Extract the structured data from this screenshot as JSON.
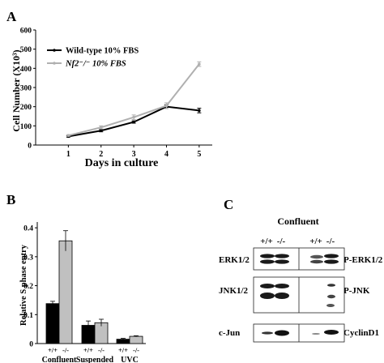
{
  "panel_labels": {
    "a": "A",
    "b": "B",
    "c": "C"
  },
  "chart_data": [
    {
      "type": "line",
      "ylabel": "Cell Number (X10³)",
      "xlabel": "Days in culture",
      "x": [
        1,
        2,
        3,
        4,
        5
      ],
      "xticks": [
        "1",
        "2",
        "3",
        "4",
        "5"
      ],
      "yticks": [
        "0",
        "100",
        "200",
        "300",
        "400",
        "500",
        "600"
      ],
      "xlim": [
        0,
        5.4
      ],
      "ylim": [
        0,
        600
      ],
      "legend_position": "top-left",
      "series": [
        {
          "name": "Wild-type 10% FBS",
          "color": "#000000",
          "values": [
            45,
            75,
            120,
            200,
            180
          ],
          "errors": [
            4,
            6,
            6,
            10,
            12
          ]
        },
        {
          "name": "Nf2⁻/⁻ 10% FBS",
          "color": "#b0b0b0",
          "values": [
            50,
            92,
            145,
            205,
            422
          ],
          "errors": [
            4,
            8,
            12,
            15,
            12
          ]
        }
      ]
    },
    {
      "type": "bar",
      "ylabel": "Relative S phase entry",
      "categories": [
        "Confluent",
        "Suspended",
        "UVC"
      ],
      "genotype_labels": [
        "+/+",
        "-/-"
      ],
      "yticks": [
        "0",
        "0.1",
        "0.2",
        "0.3",
        "0.4"
      ],
      "ylim": [
        0,
        0.42
      ],
      "series": [
        {
          "name": "+/+",
          "color": "#000000",
          "values": [
            0.138,
            0.063,
            0.015
          ],
          "errors": [
            0.008,
            0.015,
            0.003
          ]
        },
        {
          "name": "-/-",
          "color": "#c0c0c0",
          "values": [
            0.355,
            0.072,
            0.025
          ],
          "errors": [
            0.035,
            0.012,
            0.002
          ]
        }
      ]
    }
  ],
  "blot": {
    "title": "Confluent",
    "lane_labels": [
      "+/+",
      "-/-",
      "+/+",
      "-/-"
    ],
    "left_labels": [
      "ERK1/2",
      "JNK1/2",
      "c-Jun"
    ],
    "right_labels": [
      "P-ERK1/2",
      "P-JNK",
      "CyclinD1"
    ]
  }
}
